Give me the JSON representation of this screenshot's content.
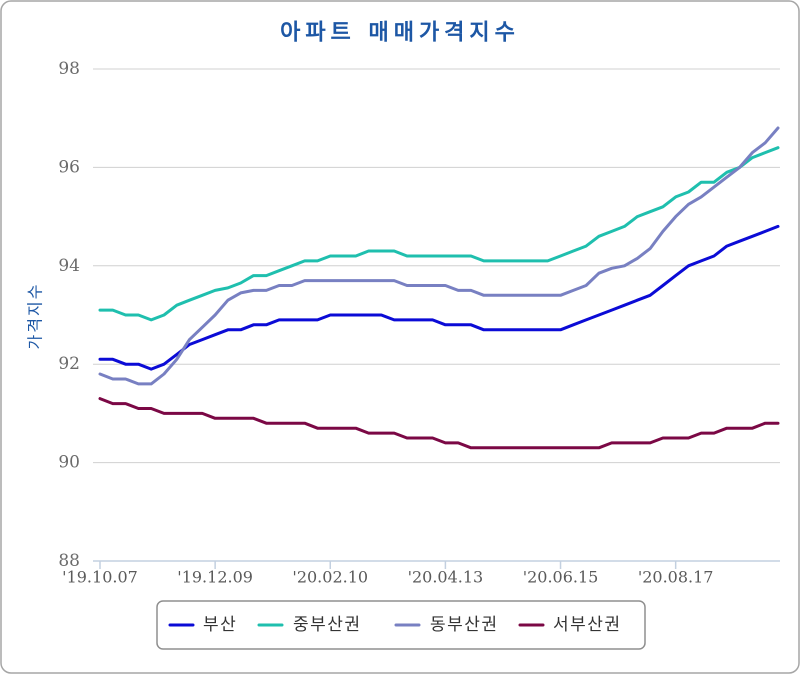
{
  "chart_data": {
    "type": "line",
    "title": "아파트 매매가격지수",
    "ylabel": "가격지수",
    "ylim": [
      88,
      98
    ],
    "y_ticks": [
      88,
      90,
      92,
      94,
      96,
      98
    ],
    "x_ticks": [
      "'19.10.07",
      "'19.12.09",
      "'20.02.10",
      "'20.04.13",
      "'20.06.15",
      "'20.08.17"
    ],
    "x": [
      "'19.10.07",
      "'19.10.14",
      "'19.10.21",
      "'19.10.28",
      "'19.11.04",
      "'19.11.11",
      "'19.11.18",
      "'19.11.25",
      "'19.12.02",
      "'19.12.09",
      "'19.12.16",
      "'19.12.23",
      "'19.12.30",
      "'20.01.06",
      "'20.01.13",
      "'20.01.20",
      "'20.01.27",
      "'20.02.03",
      "'20.02.10",
      "'20.02.17",
      "'20.02.24",
      "'20.03.02",
      "'20.03.09",
      "'20.03.16",
      "'20.03.23",
      "'20.03.30",
      "'20.04.06",
      "'20.04.13",
      "'20.04.20",
      "'20.04.27",
      "'20.05.04",
      "'20.05.11",
      "'20.05.18",
      "'20.05.25",
      "'20.06.01",
      "'20.06.08",
      "'20.06.15",
      "'20.06.22",
      "'20.06.29",
      "'20.07.06",
      "'20.07.13",
      "'20.07.20",
      "'20.07.27",
      "'20.08.03",
      "'20.08.10",
      "'20.08.17",
      "'20.08.24",
      "'20.08.31",
      "'20.09.07",
      "'20.09.14",
      "'20.09.21",
      "'20.09.28",
      "'20.10.05",
      "'20.10.12"
    ],
    "series": [
      {
        "name": "부산",
        "color": "#0b0bd6",
        "values": [
          92.1,
          92.1,
          92.0,
          92.0,
          91.9,
          92.0,
          92.2,
          92.4,
          92.5,
          92.6,
          92.7,
          92.7,
          92.8,
          92.8,
          92.9,
          92.9,
          92.9,
          92.9,
          93.0,
          93.0,
          93.0,
          93.0,
          93.0,
          92.9,
          92.9,
          92.9,
          92.9,
          92.8,
          92.8,
          92.8,
          92.7,
          92.7,
          92.7,
          92.7,
          92.7,
          92.7,
          92.7,
          92.8,
          92.9,
          93.0,
          93.1,
          93.2,
          93.3,
          93.4,
          93.6,
          93.8,
          94.0,
          94.1,
          94.2,
          94.4,
          94.5,
          94.6,
          94.7,
          94.8
        ]
      },
      {
        "name": "중부산권",
        "color": "#1fbfae",
        "values": [
          93.1,
          93.1,
          93.0,
          93.0,
          92.9,
          93.0,
          93.2,
          93.3,
          93.4,
          93.5,
          93.55,
          93.65,
          93.8,
          93.8,
          93.9,
          94.0,
          94.1,
          94.1,
          94.2,
          94.2,
          94.2,
          94.3,
          94.3,
          94.3,
          94.2,
          94.2,
          94.2,
          94.2,
          94.2,
          94.2,
          94.1,
          94.1,
          94.1,
          94.1,
          94.1,
          94.1,
          94.2,
          94.3,
          94.4,
          94.6,
          94.7,
          94.8,
          95.0,
          95.1,
          95.2,
          95.4,
          95.5,
          95.7,
          95.7,
          95.9,
          96.0,
          96.2,
          96.3,
          96.4
        ]
      },
      {
        "name": "동부산권",
        "color": "#7880c2",
        "values": [
          91.8,
          91.7,
          91.7,
          91.6,
          91.6,
          91.8,
          92.1,
          92.5,
          92.75,
          93.0,
          93.3,
          93.45,
          93.5,
          93.5,
          93.6,
          93.6,
          93.7,
          93.7,
          93.7,
          93.7,
          93.7,
          93.7,
          93.7,
          93.7,
          93.6,
          93.6,
          93.6,
          93.6,
          93.5,
          93.5,
          93.4,
          93.4,
          93.4,
          93.4,
          93.4,
          93.4,
          93.4,
          93.5,
          93.6,
          93.85,
          93.95,
          94.0,
          94.15,
          94.35,
          94.7,
          95.0,
          95.25,
          95.4,
          95.6,
          95.8,
          96.0,
          96.3,
          96.5,
          96.8
        ]
      },
      {
        "name": "서부산권",
        "color": "#7b0845",
        "values": [
          91.3,
          91.2,
          91.2,
          91.1,
          91.1,
          91.0,
          91.0,
          91.0,
          91.0,
          90.9,
          90.9,
          90.9,
          90.9,
          90.8,
          90.8,
          90.8,
          90.8,
          90.7,
          90.7,
          90.7,
          90.7,
          90.6,
          90.6,
          90.6,
          90.5,
          90.5,
          90.5,
          90.4,
          90.4,
          90.3,
          90.3,
          90.3,
          90.3,
          90.3,
          90.3,
          90.3,
          90.3,
          90.3,
          90.3,
          90.3,
          90.4,
          90.4,
          90.4,
          90.4,
          90.5,
          90.5,
          90.5,
          90.6,
          90.6,
          90.7,
          90.7,
          90.7,
          90.8,
          90.8
        ]
      }
    ],
    "grid": true,
    "legend": "bottom"
  }
}
